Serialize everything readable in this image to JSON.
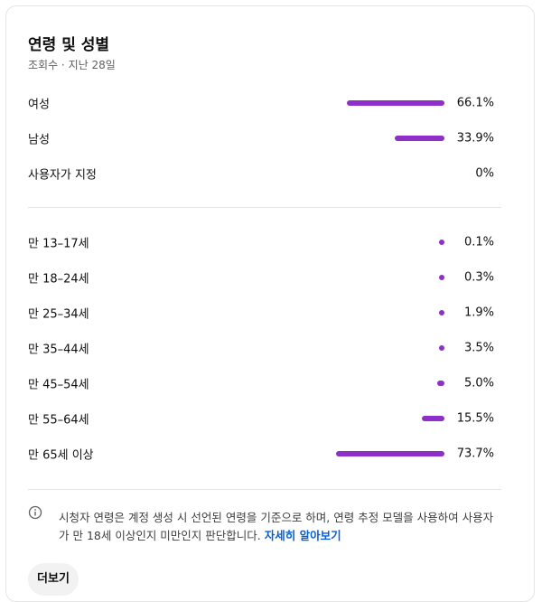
{
  "header": {
    "title": "연령 및 성별",
    "subtitle": "조회수 · 지난 28일"
  },
  "gender": {
    "rows": [
      {
        "label": "여성",
        "value": 66.1,
        "value_label": "66.1%"
      },
      {
        "label": "남성",
        "value": 33.9,
        "value_label": "33.9%"
      },
      {
        "label": "사용자가 지정",
        "value": 0,
        "value_label": "0%"
      }
    ]
  },
  "age": {
    "rows": [
      {
        "label": "만 13–17세",
        "value": 0.1,
        "value_label": "0.1%"
      },
      {
        "label": "만 18–24세",
        "value": 0.3,
        "value_label": "0.3%"
      },
      {
        "label": "만 25–34세",
        "value": 1.9,
        "value_label": "1.9%"
      },
      {
        "label": "만 35–44세",
        "value": 3.5,
        "value_label": "3.5%"
      },
      {
        "label": "만 45–54세",
        "value": 5.0,
        "value_label": "5.0%"
      },
      {
        "label": "만 55–64세",
        "value": 15.5,
        "value_label": "15.5%"
      },
      {
        "label": "만 65세 이상",
        "value": 73.7,
        "value_label": "73.7%"
      }
    ]
  },
  "bar_color": "#8e2fc9",
  "note": {
    "text": "시청자 연령은 계정 생성 시 선언된 연령을 기준으로 하며, 연령 추정 모델을 사용하여 사용자가 만 18세 이상인지 미만인지 판단합니다.",
    "link": "자세히 알아보기"
  },
  "button": "더보기"
}
